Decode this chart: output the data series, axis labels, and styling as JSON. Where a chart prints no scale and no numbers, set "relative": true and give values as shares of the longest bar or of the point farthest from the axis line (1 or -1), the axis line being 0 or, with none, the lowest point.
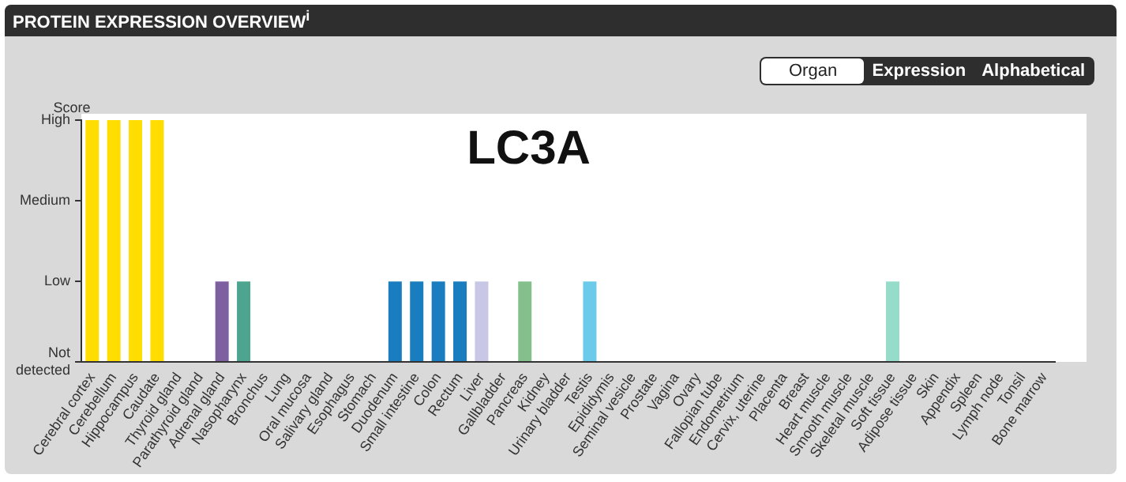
{
  "chart_data": {
    "type": "bar",
    "title": "PROTEIN EXPRESSION OVERVIEW$^{i}$",
    "subtitle": "LC3A",
    "ylabel": "Score",
    "annotations": [
      "Organ",
      "Expression",
      "Alphabetical",
      "Not detected",
      "Low",
      "Medium",
      "High"
    ],
    "categories": [
      "Cerebral cortex",
      "Cerebellum",
      "Hippocampus",
      "Caudate",
      "Thyroid gland",
      "Parathyroid gland",
      "Adrenal gland",
      "Nasopharynx",
      "Bronchus",
      "Lung",
      "Oral mucosa",
      "Salivary gland",
      "Esophagus",
      "Stomach",
      "Duodenum",
      "Small intestine",
      "Colon",
      "Rectum",
      "Liver",
      "Gallbladder",
      "Pancreas",
      "Kidney",
      "Urinary bladder",
      "Testis",
      "Epididymis",
      "Seminal vesicle",
      "Prostate",
      "Vagina",
      "Ovary",
      "Fallopian tube",
      "Endometrium",
      "Cervix, uterine",
      "Placenta",
      "Breast",
      "Heart muscle",
      "Smooth muscle",
      "Skeletal muscle",
      "Soft tissue",
      "Adipose tissue",
      "Skin",
      "Appendix",
      "Spleen",
      "Lymph node",
      "Tonsil",
      "Bone marrow"
    ],
    "relative": true,
    "values": [
      1,
      1,
      1,
      1,
      0,
      0,
      0.333,
      0.333,
      0,
      0,
      0,
      0,
      0,
      0,
      0.333,
      0.333,
      0.333,
      0.333,
      0.333,
      0,
      0.333,
      0,
      0,
      0.333,
      0,
      0,
      0,
      0,
      0,
      0,
      0,
      0,
      0,
      0,
      0,
      0,
      0,
      0.333,
      0,
      0,
      0,
      0,
      0,
      0,
      0
    ],
    "colors": [
      "#ffdd00",
      "#ffdd00",
      "#ffdd00",
      "#ffdd00",
      "#7e5fa0",
      "#7e5fa0",
      "#7e5fa0",
      "#4da58f",
      "#4da58f",
      "#4da58f",
      "#4da58f",
      "#4da58f",
      "#1a7dbf",
      "#1a7dbf",
      "#1a7dbf",
      "#1a7dbf",
      "#1a7dbf",
      "#1a7dbf",
      "#c8c8e6",
      "#85c08c",
      "#85c08c",
      "#f4a62a",
      "#f4a62a",
      "#6ccbea",
      "#6ccbea",
      "#6ccbea",
      "#6ccbea",
      "#f0a0b0",
      "#f0a0b0",
      "#f0a0b0",
      "#f0a0b0",
      "#f0a0b0",
      "#f0a0b0",
      "#f0a0b0",
      "#e06050",
      "#e06050",
      "#e06050",
      "#96dccb",
      "#96dccb",
      "#c0a070",
      "#d05050",
      "#d05050",
      "#d05050",
      "#d05050",
      "#d05050"
    ],
    "grid": false,
    "legend": false
  }
}
